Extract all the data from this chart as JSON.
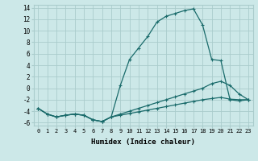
{
  "xlabel": "Humidex (Indice chaleur)",
  "bg_color": "#cce8e8",
  "grid_color": "#aacccc",
  "line_color": "#1a6b6b",
  "xlim": [
    -0.5,
    23.5
  ],
  "ylim": [
    -6.5,
    14.5
  ],
  "xticks": [
    0,
    1,
    2,
    3,
    4,
    5,
    6,
    7,
    8,
    9,
    10,
    11,
    12,
    13,
    14,
    15,
    16,
    17,
    18,
    19,
    20,
    21,
    22,
    23
  ],
  "yticks": [
    -6,
    -4,
    -2,
    0,
    2,
    4,
    6,
    8,
    10,
    12,
    14
  ],
  "series1": [
    [
      0,
      -3.5
    ],
    [
      1,
      -4.5
    ],
    [
      2,
      -5.0
    ],
    [
      3,
      -4.7
    ],
    [
      4,
      -4.5
    ],
    [
      5,
      -4.7
    ],
    [
      6,
      -5.5
    ],
    [
      7,
      -5.8
    ],
    [
      8,
      -5.0
    ],
    [
      9,
      0.5
    ],
    [
      10,
      5.0
    ],
    [
      11,
      7.0
    ],
    [
      12,
      9.0
    ],
    [
      13,
      11.5
    ],
    [
      14,
      12.5
    ],
    [
      15,
      13.0
    ],
    [
      16,
      13.5
    ],
    [
      17,
      13.8
    ],
    [
      18,
      11.0
    ],
    [
      19,
      5.0
    ],
    [
      20,
      4.8
    ],
    [
      21,
      -2.0
    ],
    [
      22,
      -2.2
    ],
    [
      23,
      -2.0
    ]
  ],
  "series2": [
    [
      0,
      -3.5
    ],
    [
      1,
      -4.5
    ],
    [
      2,
      -5.0
    ],
    [
      3,
      -4.7
    ],
    [
      4,
      -4.5
    ],
    [
      5,
      -4.7
    ],
    [
      6,
      -5.5
    ],
    [
      7,
      -5.8
    ],
    [
      8,
      -5.0
    ],
    [
      9,
      -4.5
    ],
    [
      10,
      -4.0
    ],
    [
      11,
      -3.5
    ],
    [
      12,
      -3.0
    ],
    [
      13,
      -2.5
    ],
    [
      14,
      -2.0
    ],
    [
      15,
      -1.5
    ],
    [
      16,
      -1.0
    ],
    [
      17,
      -0.5
    ],
    [
      18,
      0.0
    ],
    [
      19,
      0.8
    ],
    [
      20,
      1.2
    ],
    [
      21,
      0.5
    ],
    [
      22,
      -1.0
    ],
    [
      23,
      -2.0
    ]
  ],
  "series3": [
    [
      0,
      -3.5
    ],
    [
      1,
      -4.5
    ],
    [
      2,
      -5.0
    ],
    [
      3,
      -4.7
    ],
    [
      4,
      -4.5
    ],
    [
      5,
      -4.7
    ],
    [
      6,
      -5.5
    ],
    [
      7,
      -5.8
    ],
    [
      8,
      -5.0
    ],
    [
      9,
      -4.7
    ],
    [
      10,
      -4.4
    ],
    [
      11,
      -4.1
    ],
    [
      12,
      -3.8
    ],
    [
      13,
      -3.5
    ],
    [
      14,
      -3.2
    ],
    [
      15,
      -2.9
    ],
    [
      16,
      -2.6
    ],
    [
      17,
      -2.3
    ],
    [
      18,
      -2.0
    ],
    [
      19,
      -1.8
    ],
    [
      20,
      -1.6
    ],
    [
      21,
      -1.9
    ],
    [
      22,
      -2.0
    ],
    [
      23,
      -2.0
    ]
  ]
}
